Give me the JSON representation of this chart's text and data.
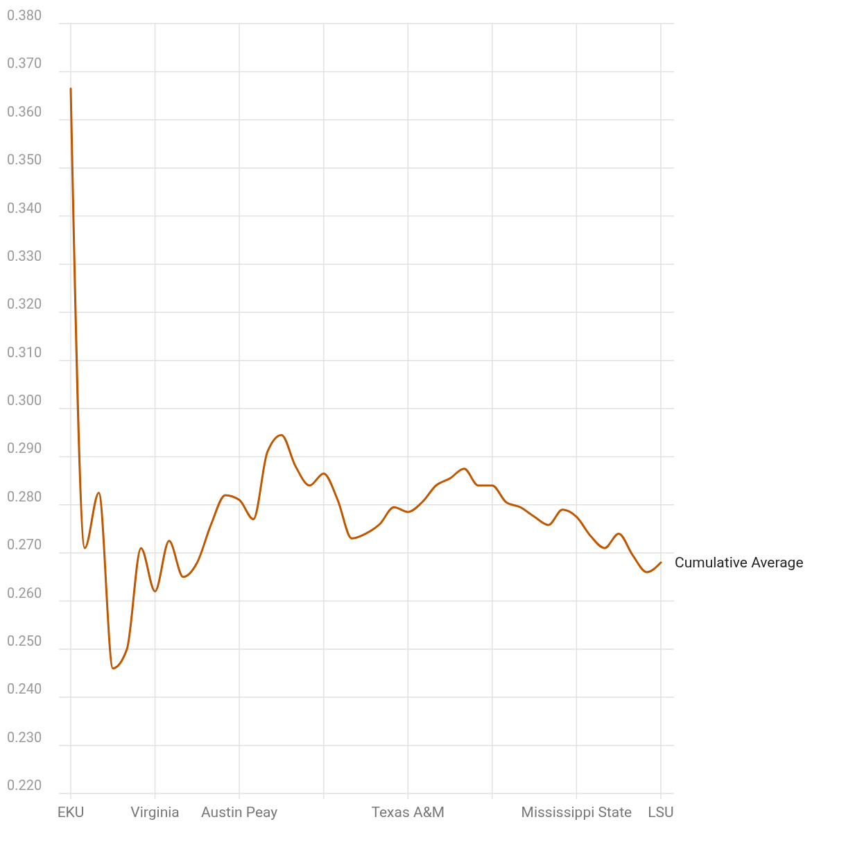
{
  "chart_data": {
    "type": "line",
    "categories": [
      "EKU",
      null,
      null,
      null,
      null,
      null,
      "Virginia",
      null,
      null,
      null,
      null,
      null,
      "Austin Peay",
      null,
      null,
      null,
      null,
      null,
      null,
      null,
      null,
      null,
      null,
      null,
      "Texas A&M",
      null,
      null,
      null,
      null,
      null,
      null,
      null,
      null,
      null,
      null,
      null,
      "Mississippi State",
      null,
      null,
      null,
      null,
      null,
      "LSU"
    ],
    "series": [
      {
        "name": "Cumulative Average",
        "color": "#bf5700",
        "values": [
          0.3665,
          0.271,
          0.2825,
          0.246,
          0.25,
          0.271,
          0.262,
          0.2725,
          0.265,
          0.268,
          0.276,
          0.282,
          0.281,
          0.277,
          0.291,
          0.2945,
          0.288,
          0.284,
          0.2865,
          0.281,
          0.273,
          0.274,
          0.276,
          0.2795,
          0.2785,
          0.2805,
          0.284,
          0.2855,
          0.2875,
          0.284,
          0.284,
          0.2805,
          0.2795,
          0.2775,
          0.2758,
          0.279,
          0.2775,
          0.2735,
          0.271,
          0.274,
          0.2695,
          0.266,
          0.268
        ]
      }
    ],
    "ylim": [
      0.22,
      0.38
    ],
    "yticks": [
      {
        "value": 0.22,
        "label": "0.220"
      },
      {
        "value": 0.23,
        "label": "0.230"
      },
      {
        "value": 0.24,
        "label": "0.240"
      },
      {
        "value": 0.25,
        "label": "0.250"
      },
      {
        "value": 0.26,
        "label": "0.260"
      },
      {
        "value": 0.27,
        "label": "0.270"
      },
      {
        "value": 0.28,
        "label": "0.280"
      },
      {
        "value": 0.29,
        "label": "0.290"
      },
      {
        "value": 0.3,
        "label": "0.300"
      },
      {
        "value": 0.31,
        "label": "0.310"
      },
      {
        "value": 0.32,
        "label": "0.320"
      },
      {
        "value": 0.33,
        "label": "0.330"
      },
      {
        "value": 0.34,
        "label": "0.340"
      },
      {
        "value": 0.35,
        "label": "0.350"
      },
      {
        "value": 0.36,
        "label": "0.360"
      },
      {
        "value": 0.37,
        "label": "0.370"
      },
      {
        "value": 0.38,
        "label": "0.380"
      }
    ],
    "grid": true,
    "legend": false
  }
}
